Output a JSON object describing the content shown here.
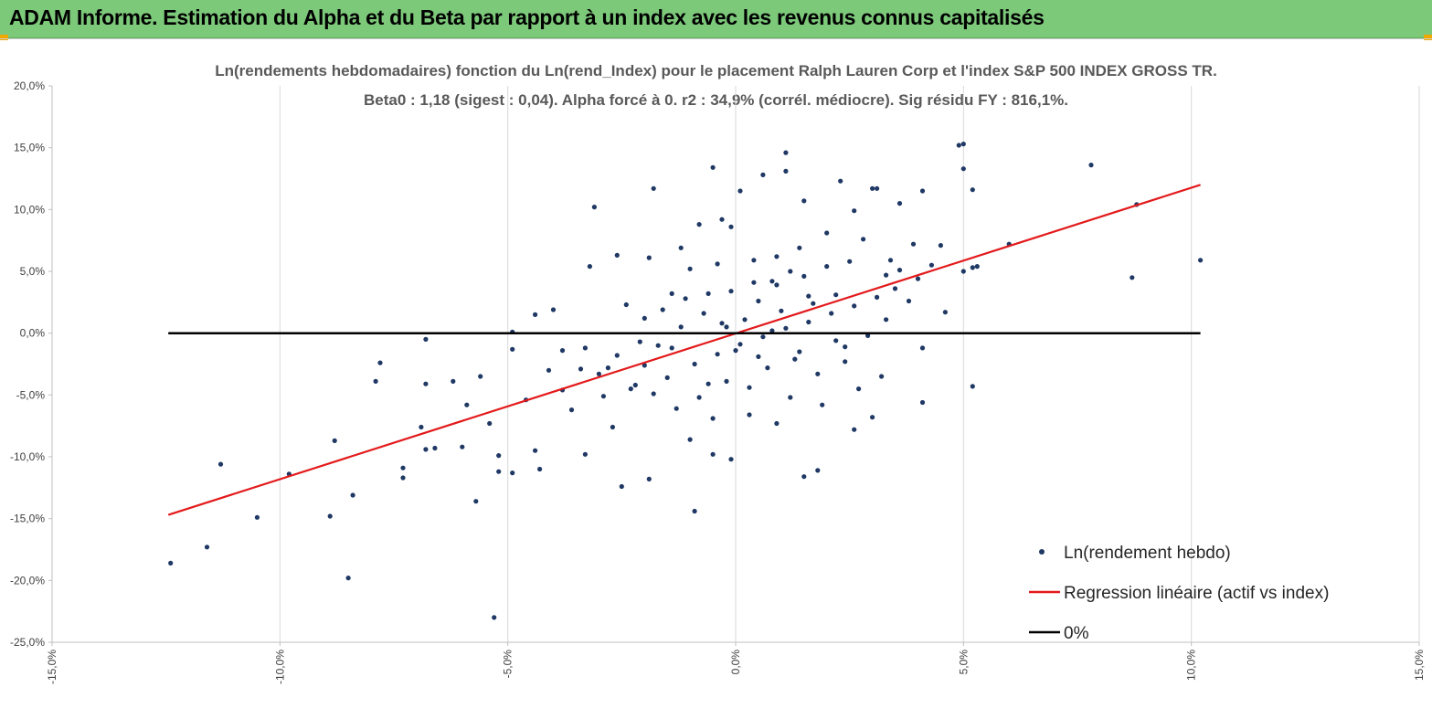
{
  "banner": {
    "title": "ADAM Informe. Estimation du Alpha et du Beta par rapport à un index avec les revenus connus capitalisés",
    "background": "#7dc97a",
    "corner_color": "#f0a800"
  },
  "chart_data": {
    "type": "scatter",
    "title": "Ln(rendements hebdomadaires) fonction du Ln(rend_Index) pour le placement Ralph Lauren Corp et l'index S&P 500 INDEX GROSS TR.",
    "subtitle": "Beta0 : 1,18 (sigest : 0,04). Alpha forcé à 0. r2 : 34,9% (corrél. médiocre). Sig résidu FY : 816,1%.",
    "xlabel": "",
    "ylabel": "",
    "xlim": [
      -15,
      15
    ],
    "ylim": [
      -25,
      20
    ],
    "x_ticks": [
      -15,
      -10,
      -5,
      0,
      5,
      10,
      15
    ],
    "x_tick_labels": [
      "-15,0%",
      "-10,0%",
      "-5,0%",
      "0,0%",
      "5,0%",
      "10,0%",
      "15,0%"
    ],
    "y_ticks": [
      20,
      15,
      10,
      5,
      0,
      -5,
      -10,
      -15,
      -20,
      -25
    ],
    "y_tick_labels": [
      "20,0%",
      "15,0%",
      "10,0%",
      "5,0%",
      "0,0%",
      "-5,0%",
      "-10,0%",
      "-15,0%",
      "-20,0%",
      "-25,0%"
    ],
    "grid": "vertical",
    "legend_position": "bottom-right",
    "series": [
      {
        "name": "Ln(rendement hebdo)",
        "kind": "scatter",
        "color": "#1f3864",
        "points": [
          [
            -12.4,
            -18.6
          ],
          [
            -11.6,
            -17.3
          ],
          [
            -11.3,
            -10.6
          ],
          [
            -10.5,
            -14.9
          ],
          [
            -9.8,
            -11.4
          ],
          [
            -8.8,
            -8.7
          ],
          [
            -8.9,
            -14.8
          ],
          [
            -8.5,
            -19.8
          ],
          [
            -8.4,
            -13.1
          ],
          [
            -7.8,
            -2.4
          ],
          [
            -7.9,
            -3.9
          ],
          [
            -7.3,
            -10.9
          ],
          [
            -7.3,
            -11.7
          ],
          [
            -6.9,
            -7.6
          ],
          [
            -6.8,
            -0.5
          ],
          [
            -6.8,
            -9.4
          ],
          [
            -6.6,
            -9.3
          ],
          [
            -6.8,
            -4.1
          ],
          [
            -6.2,
            -3.9
          ],
          [
            -6.0,
            -9.2
          ],
          [
            -5.9,
            -5.8
          ],
          [
            -5.7,
            -13.6
          ],
          [
            -5.6,
            -3.5
          ],
          [
            -5.4,
            -7.3
          ],
          [
            -5.2,
            -11.2
          ],
          [
            -5.3,
            -23.0
          ],
          [
            -5.2,
            -9.9
          ],
          [
            -4.9,
            -1.3
          ],
          [
            -4.9,
            0.1
          ],
          [
            -4.9,
            -11.3
          ],
          [
            -4.4,
            -9.5
          ],
          [
            -4.3,
            -11.0
          ],
          [
            -4.4,
            1.5
          ],
          [
            -4.0,
            1.9
          ],
          [
            -3.8,
            -1.4
          ],
          [
            -3.6,
            -6.2
          ],
          [
            -3.3,
            -9.8
          ],
          [
            -3.2,
            5.4
          ],
          [
            -3.1,
            10.2
          ],
          [
            -2.8,
            -2.8
          ],
          [
            -2.7,
            -7.6
          ],
          [
            -2.6,
            6.3
          ],
          [
            -2.5,
            -12.4
          ],
          [
            -2.3,
            -4.5
          ],
          [
            -2.0,
            1.2
          ],
          [
            -1.9,
            -11.8
          ],
          [
            -1.9,
            6.1
          ],
          [
            -1.8,
            11.7
          ],
          [
            -1.7,
            -1.0
          ],
          [
            -1.4,
            3.2
          ],
          [
            -1.2,
            6.9
          ],
          [
            -1.0,
            -8.6
          ],
          [
            -0.9,
            -14.4
          ],
          [
            -0.8,
            8.8
          ],
          [
            -0.5,
            13.4
          ],
          [
            -0.5,
            -9.8
          ],
          [
            -0.3,
            9.2
          ],
          [
            -0.1,
            -10.2
          ],
          [
            -0.1,
            8.6
          ],
          [
            0.1,
            11.5
          ],
          [
            0.3,
            -4.4
          ],
          [
            0.6,
            12.8
          ],
          [
            0.8,
            4.2
          ],
          [
            1.1,
            14.6
          ],
          [
            1.1,
            13.1
          ],
          [
            1.2,
            -5.2
          ],
          [
            1.5,
            10.7
          ],
          [
            1.5,
            -11.6
          ],
          [
            1.8,
            -11.1
          ],
          [
            2.0,
            5.4
          ],
          [
            2.3,
            12.3
          ],
          [
            2.4,
            -2.3
          ],
          [
            2.6,
            9.9
          ],
          [
            2.6,
            -7.8
          ],
          [
            3.0,
            11.7
          ],
          [
            3.1,
            11.7
          ],
          [
            3.2,
            -3.5
          ],
          [
            3.3,
            4.7
          ],
          [
            3.6,
            5.1
          ],
          [
            3.6,
            10.5
          ],
          [
            3.8,
            2.6
          ],
          [
            4.1,
            11.5
          ],
          [
            4.1,
            -1.2
          ],
          [
            4.1,
            -5.6
          ],
          [
            4.3,
            5.5
          ],
          [
            4.5,
            7.1
          ],
          [
            4.6,
            1.7
          ],
          [
            4.9,
            15.2
          ],
          [
            5.0,
            15.3
          ],
          [
            5.0,
            13.3
          ],
          [
            5.0,
            5.0
          ],
          [
            5.2,
            11.6
          ],
          [
            5.2,
            5.3
          ],
          [
            5.3,
            5.4
          ],
          [
            5.2,
            -4.3
          ],
          [
            6.0,
            7.2
          ],
          [
            7.8,
            13.6
          ],
          [
            8.7,
            4.5
          ],
          [
            8.8,
            10.4
          ],
          [
            10.2,
            5.9
          ],
          [
            2.8,
            7.6
          ],
          [
            2.0,
            8.1
          ],
          [
            1.4,
            6.9
          ],
          [
            0.9,
            6.2
          ],
          [
            0.4,
            5.9
          ],
          [
            -0.4,
            5.6
          ],
          [
            -1.0,
            5.2
          ],
          [
            3.4,
            5.9
          ],
          [
            3.9,
            7.2
          ],
          [
            2.2,
            3.1
          ],
          [
            1.7,
            2.4
          ],
          [
            1.0,
            1.8
          ],
          [
            0.5,
            2.6
          ],
          [
            0.2,
            1.1
          ],
          [
            -0.3,
            0.8
          ],
          [
            -0.7,
            1.6
          ],
          [
            -1.2,
            0.5
          ],
          [
            -1.6,
            1.9
          ],
          [
            -2.1,
            -0.7
          ],
          [
            -2.6,
            -1.8
          ],
          [
            -3.0,
            -3.3
          ],
          [
            -3.4,
            -2.9
          ],
          [
            -3.8,
            -4.6
          ],
          [
            -2.9,
            -5.1
          ],
          [
            -2.2,
            -4.2
          ],
          [
            -1.5,
            -3.6
          ],
          [
            -0.9,
            -2.5
          ],
          [
            -0.4,
            -1.7
          ],
          [
            0.1,
            -0.9
          ],
          [
            0.6,
            -0.3
          ],
          [
            1.1,
            0.4
          ],
          [
            1.6,
            0.9
          ],
          [
            2.1,
            1.6
          ],
          [
            2.6,
            2.2
          ],
          [
            3.1,
            2.9
          ],
          [
            3.5,
            3.6
          ],
          [
            4.0,
            4.4
          ],
          [
            1.3,
            -2.1
          ],
          [
            0.7,
            -2.8
          ],
          [
            -0.2,
            -3.9
          ],
          [
            -0.8,
            -5.2
          ],
          [
            -1.3,
            -6.1
          ],
          [
            -1.8,
            -4.9
          ],
          [
            1.8,
            -3.3
          ],
          [
            2.4,
            -1.1
          ],
          [
            2.9,
            -0.2
          ],
          [
            3.3,
            1.1
          ],
          [
            0.9,
            3.9
          ],
          [
            1.5,
            4.6
          ],
          [
            -0.6,
            3.2
          ],
          [
            -1.1,
            2.8
          ],
          [
            -2.4,
            2.3
          ],
          [
            -3.3,
            -1.2
          ],
          [
            -4.1,
            -3.0
          ],
          [
            -4.6,
            -5.4
          ],
          [
            0.3,
            -6.6
          ],
          [
            0.9,
            -7.3
          ],
          [
            -0.5,
            -6.9
          ],
          [
            1.9,
            -5.8
          ],
          [
            2.7,
            -4.5
          ],
          [
            3.0,
            -6.8
          ],
          [
            -0.1,
            3.4
          ],
          [
            0.4,
            4.1
          ],
          [
            1.2,
            5.0
          ],
          [
            2.5,
            5.8
          ],
          [
            1.6,
            3.0
          ],
          [
            0.8,
            0.2
          ],
          [
            -0.2,
            0.5
          ],
          [
            0.0,
            -1.4
          ],
          [
            0.5,
            -1.9
          ],
          [
            1.4,
            -1.5
          ],
          [
            2.2,
            -0.6
          ],
          [
            -1.4,
            -1.2
          ],
          [
            -2.0,
            -2.6
          ],
          [
            -0.6,
            -4.1
          ]
        ]
      },
      {
        "name": "Regression linéaire (actif vs index)",
        "kind": "line",
        "color": "#e31a1c",
        "points": [
          [
            -12.45,
            -14.7
          ],
          [
            10.2,
            12.0
          ]
        ]
      },
      {
        "name": "0%",
        "kind": "line",
        "color": "#000000",
        "points": [
          [
            -12.45,
            0.0
          ],
          [
            10.2,
            0.0
          ]
        ]
      }
    ]
  }
}
